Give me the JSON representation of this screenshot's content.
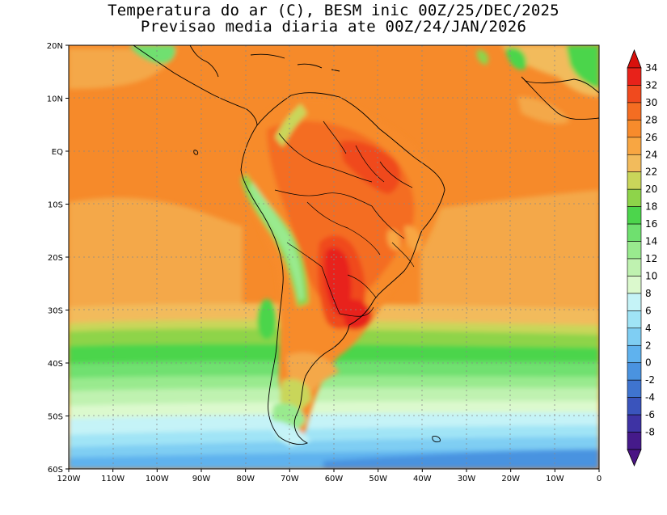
{
  "title": {
    "line1": "Temperatura do ar (C), BESM inic 00Z/25/DEC/2025",
    "line2": "Previsao media diaria ate 00Z/24/JAN/2026"
  },
  "map": {
    "lon_range": [
      -120,
      0
    ],
    "lat_range": [
      -60,
      20
    ],
    "lon_ticks": [
      {
        "lon": -120,
        "label": "120W"
      },
      {
        "lon": -110,
        "label": "110W"
      },
      {
        "lon": -100,
        "label": "100W"
      },
      {
        "lon": -90,
        "label": "90W"
      },
      {
        "lon": -80,
        "label": "80W"
      },
      {
        "lon": -70,
        "label": "70W"
      },
      {
        "lon": -60,
        "label": "60W"
      },
      {
        "lon": -50,
        "label": "50W"
      },
      {
        "lon": -40,
        "label": "40W"
      },
      {
        "lon": -30,
        "label": "30W"
      },
      {
        "lon": -20,
        "label": "20W"
      },
      {
        "lon": -10,
        "label": "10W"
      },
      {
        "lon": 0,
        "label": "0"
      }
    ],
    "lat_ticks": [
      {
        "lat": 20,
        "label": "20N"
      },
      {
        "lat": 10,
        "label": "10N"
      },
      {
        "lat": 0,
        "label": "EQ"
      },
      {
        "lat": -10,
        "label": "10S"
      },
      {
        "lat": -20,
        "label": "20S"
      },
      {
        "lat": -30,
        "label": "30S"
      },
      {
        "lat": -40,
        "label": "40S"
      },
      {
        "lat": -50,
        "label": "50S"
      },
      {
        "lat": -60,
        "label": "60S"
      }
    ]
  },
  "colorbar": {
    "levels": [
      {
        "label": "34",
        "color": "#e8221a"
      },
      {
        "label": "32",
        "color": "#f04a1e"
      },
      {
        "label": "30",
        "color": "#f46d22"
      },
      {
        "label": "28",
        "color": "#f78b2c"
      },
      {
        "label": "26",
        "color": "#f8a642"
      },
      {
        "label": "24",
        "color": "#f2bb5c"
      },
      {
        "label": "22",
        "color": "#c9d65a"
      },
      {
        "label": "20",
        "color": "#8ed44a"
      },
      {
        "label": "18",
        "color": "#4cd54c"
      },
      {
        "label": "16",
        "color": "#6fe06f"
      },
      {
        "label": "14",
        "color": "#99ea8e"
      },
      {
        "label": "12",
        "color": "#bff2b0"
      },
      {
        "label": "10",
        "color": "#dbf9cd"
      },
      {
        "label": "8",
        "color": "#c5f3f7"
      },
      {
        "label": "6",
        "color": "#a0e4f6"
      },
      {
        "label": "4",
        "color": "#7fcef3"
      },
      {
        "label": "2",
        "color": "#5fb2ee"
      },
      {
        "label": "0",
        "color": "#4a93e0"
      },
      {
        "label": "-2",
        "color": "#3f74cf"
      },
      {
        "label": "-4",
        "color": "#3a54bc"
      },
      {
        "label": "-6",
        "color": "#3e33a4"
      },
      {
        "label": "-8",
        "color": "#451a8a"
      }
    ],
    "top_color": "#d8100c",
    "bottom_color": "#4a1584"
  }
}
